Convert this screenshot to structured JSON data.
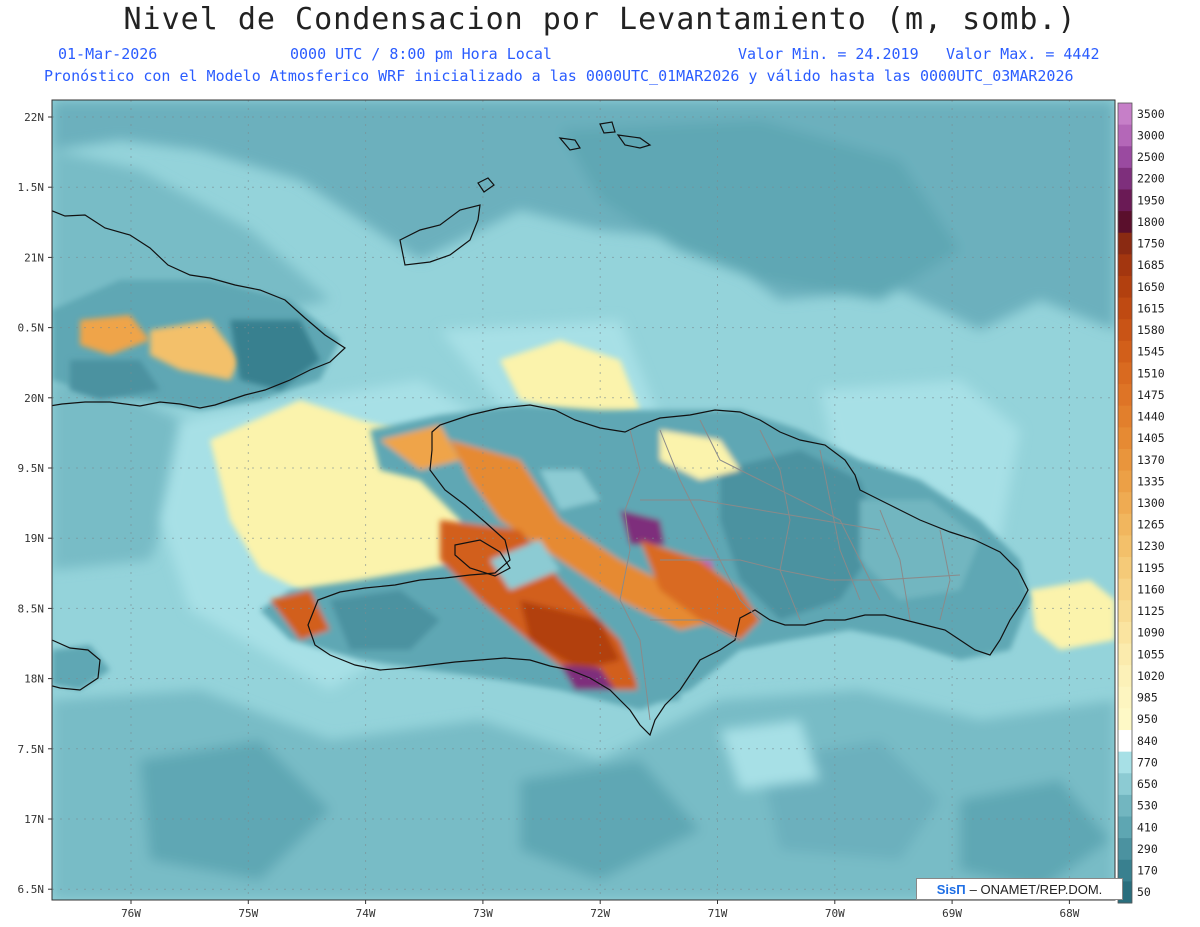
{
  "header": {
    "title": "Nivel de Condensacion por Levantamiento (m, somb.)",
    "date": "01-Mar-2026",
    "time": "0000 UTC / 8:00 pm Hora Local",
    "min_label": "Valor Min. = 24.2019",
    "max_label": "Valor Max. = 4442",
    "model_line": "Pronóstico con el Modelo Atmosferico WRF inicializado a las 0000UTC_01MAR2026 y válido hasta las  0000UTC_03MAR2026"
  },
  "axes": {
    "lat_labels": [
      "22N",
      "1.5N",
      "21N",
      "0.5N",
      "20N",
      "9.5N",
      "19N",
      "8.5N",
      "18N",
      "7.5N",
      "17N",
      "6.5N"
    ],
    "lon_labels": [
      "76W",
      "75W",
      "74W",
      "73W",
      "72W",
      "71W",
      "70W",
      "69W",
      "68W"
    ]
  },
  "colorbar": {
    "labels": [
      "3500",
      "3000",
      "2500",
      "2200",
      "1950",
      "1800",
      "1750",
      "1685",
      "1650",
      "1615",
      "1580",
      "1545",
      "1510",
      "1475",
      "1440",
      "1405",
      "1370",
      "1335",
      "1300",
      "1265",
      "1230",
      "1195",
      "1160",
      "1125",
      "1090",
      "1055",
      "1020",
      "985",
      "950",
      "840",
      "770",
      "650",
      "530",
      "410",
      "290",
      "170",
      "50"
    ],
    "colors": [
      "#c67fc8",
      "#b467b8",
      "#9a4aa0",
      "#7e2f7c",
      "#6a1a55",
      "#5a0f2c",
      "#8a2a12",
      "#a3360f",
      "#b2400f",
      "#bf4a12",
      "#c95416",
      "#d25f1a",
      "#d96a20",
      "#de7426",
      "#e27f2c",
      "#e68a33",
      "#e9953c",
      "#eca046",
      "#efab52",
      "#f1b65e",
      "#f3c06a",
      "#f5ca78",
      "#f7d386",
      "#f8dc93",
      "#fae4a0",
      "#fbebad",
      "#fcf1b8",
      "#fdf5c0",
      "#fef9c6",
      "#ffffff",
      "#a7e0e6",
      "#8ccbd3",
      "#72b6c0",
      "#5ea6b2",
      "#4b92a0",
      "#39808f",
      "#2a6e7d"
    ]
  },
  "credit": {
    "brand": "SisΠ",
    "text": "– ONAMET/REP.DOM."
  },
  "colors": {
    "ocean_light": "#94d3da",
    "ocean_mid": "#78bcc6",
    "ocean_dark": "#5fa7b4",
    "land_yellow": "#fbf3ac",
    "land_orange": "#efa44a",
    "land_brown": "#b3581b",
    "land_purple": "#7e2f7c",
    "coast": "#111111",
    "borders": "#8a8a8a",
    "title_text": "#2a5cff"
  }
}
